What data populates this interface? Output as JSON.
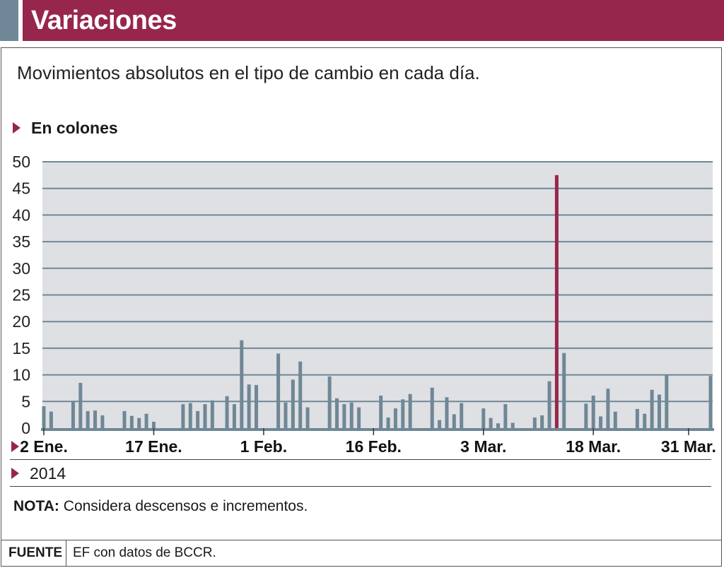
{
  "header": {
    "title": "Variaciones"
  },
  "subtitle": "Movimientos absolutos en el tipo de cambio en cada día.",
  "unit_label": "En colones",
  "year_label": "2014",
  "note": {
    "label": "NOTA:",
    "text": " Considera descensos e incrementos."
  },
  "footer": {
    "source_label": "FUENTE",
    "source_text": "EF con datos de BCCR."
  },
  "colors": {
    "bar": "#6f8797",
    "highlight": "#97264d",
    "plot_bg": "#dfe0e3",
    "grid": "#6f8797"
  },
  "chart_data": {
    "type": "bar",
    "title": "Variaciones",
    "subtitle": "Movimientos absolutos en el tipo de cambio en cada día.",
    "ylabel": "En colones",
    "xlabel": "2014",
    "ylim": [
      0,
      50
    ],
    "yticks": [
      0,
      5,
      10,
      15,
      20,
      25,
      30,
      35,
      40,
      45,
      50
    ],
    "xlim": [
      "2014-01-02",
      "2014-04-03"
    ],
    "xtick_labels": [
      {
        "date": "2014-01-02",
        "label": "2 Ene."
      },
      {
        "date": "2014-01-17",
        "label": "17 Ene."
      },
      {
        "date": "2014-02-01",
        "label": "1 Feb."
      },
      {
        "date": "2014-02-16",
        "label": "16 Feb."
      },
      {
        "date": "2014-03-03",
        "label": "3 Mar."
      },
      {
        "date": "2014-03-18",
        "label": "18 Mar."
      },
      {
        "date": "2014-03-31",
        "label": "31 Mar."
      }
    ],
    "grid": true,
    "highlight_date": "2014-03-13",
    "dates": [
      "2014-01-02",
      "2014-01-03",
      "2014-01-06",
      "2014-01-07",
      "2014-01-08",
      "2014-01-09",
      "2014-01-10",
      "2014-01-13",
      "2014-01-14",
      "2014-01-15",
      "2014-01-16",
      "2014-01-17",
      "2014-01-21",
      "2014-01-22",
      "2014-01-23",
      "2014-01-24",
      "2014-01-25",
      "2014-01-27",
      "2014-01-28",
      "2014-01-29",
      "2014-01-30",
      "2014-01-31",
      "2014-02-03",
      "2014-02-04",
      "2014-02-05",
      "2014-02-06",
      "2014-02-07",
      "2014-02-10",
      "2014-02-11",
      "2014-02-12",
      "2014-02-13",
      "2014-02-14",
      "2014-02-17",
      "2014-02-18",
      "2014-02-19",
      "2014-02-20",
      "2014-02-21",
      "2014-02-24",
      "2014-02-25",
      "2014-02-26",
      "2014-02-27",
      "2014-02-28",
      "2014-03-03",
      "2014-03-04",
      "2014-03-05",
      "2014-03-06",
      "2014-03-07",
      "2014-03-10",
      "2014-03-11",
      "2014-03-12",
      "2014-03-13",
      "2014-03-14",
      "2014-03-17",
      "2014-03-18",
      "2014-03-19",
      "2014-03-20",
      "2014-03-21",
      "2014-03-24",
      "2014-03-25",
      "2014-03-26",
      "2014-03-27",
      "2014-03-28",
      "2014-04-03"
    ],
    "values": [
      4.1,
      3.1,
      5.1,
      8.5,
      3.2,
      3.3,
      2.4,
      3.2,
      2.3,
      1.9,
      2.7,
      1.2,
      4.5,
      4.7,
      3.2,
      4.5,
      5.2,
      6.0,
      4.5,
      16.5,
      8.2,
      8.1,
      14.0,
      4.8,
      9.1,
      12.5,
      3.9,
      9.7,
      5.6,
      4.5,
      4.8,
      3.9,
      6.1,
      2.0,
      3.7,
      5.4,
      6.4,
      7.6,
      1.5,
      5.8,
      2.6,
      4.7,
      3.7,
      1.9,
      0.9,
      4.5,
      1.0,
      2.0,
      2.4,
      8.8,
      47.5,
      14.1,
      4.6,
      6.1,
      2.2,
      7.4,
      3.1,
      3.6,
      2.7,
      7.2,
      6.3,
      10.0,
      9.8
    ]
  }
}
